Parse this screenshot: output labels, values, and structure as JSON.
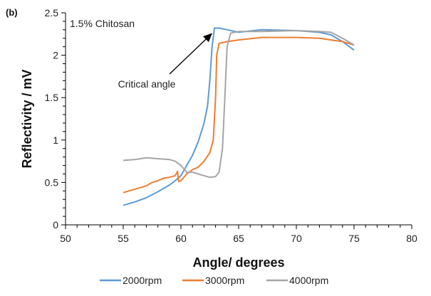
{
  "chart_data": {
    "type": "line",
    "panel_label": "(b)",
    "title": "1.5% Chitosan",
    "xlabel": "Angle/ degrees",
    "ylabel": "Reflectivity / mV",
    "xlim": [
      50,
      80
    ],
    "ylim": [
      0,
      2.5
    ],
    "xticks": [
      "50",
      "55",
      "60",
      "65",
      "70",
      "75",
      "80"
    ],
    "yticks": [
      "0",
      "0.5",
      "1",
      "1.5",
      "2",
      "2.5"
    ],
    "grid": false,
    "legend_position": "bottom",
    "annotation": {
      "text": "Critical angle",
      "points_to": [
        62.9,
        2.32
      ]
    },
    "series": [
      {
        "name": "2000rpm",
        "color": "#5B9BD5",
        "points": [
          [
            55,
            0.23
          ],
          [
            56,
            0.27
          ],
          [
            57,
            0.32
          ],
          [
            58,
            0.39
          ],
          [
            59,
            0.47
          ],
          [
            59.5,
            0.52
          ],
          [
            60,
            0.58
          ],
          [
            60.5,
            0.7
          ],
          [
            61,
            0.82
          ],
          [
            61.5,
            0.98
          ],
          [
            62,
            1.2
          ],
          [
            62.3,
            1.4
          ],
          [
            62.5,
            1.7
          ],
          [
            62.7,
            2.1
          ],
          [
            62.9,
            2.32
          ],
          [
            63.3,
            2.32
          ],
          [
            64,
            2.3
          ],
          [
            65,
            2.27
          ],
          [
            67,
            2.3
          ],
          [
            70,
            2.29
          ],
          [
            72,
            2.27
          ],
          [
            73,
            2.24
          ],
          [
            74,
            2.16
          ],
          [
            75,
            2.06
          ]
        ]
      },
      {
        "name": "3000rpm",
        "color": "#ED7D31",
        "points": [
          [
            55,
            0.38
          ],
          [
            56,
            0.42
          ],
          [
            57,
            0.46
          ],
          [
            57.5,
            0.5
          ],
          [
            58,
            0.52
          ],
          [
            58.5,
            0.55
          ],
          [
            59,
            0.56
          ],
          [
            59.5,
            0.58
          ],
          [
            59.7,
            0.63
          ],
          [
            59.8,
            0.51
          ],
          [
            60,
            0.52
          ],
          [
            60.5,
            0.6
          ],
          [
            61,
            0.65
          ],
          [
            61.5,
            0.68
          ],
          [
            62,
            0.75
          ],
          [
            62.5,
            0.85
          ],
          [
            62.8,
            1.0
          ],
          [
            63,
            1.5
          ],
          [
            63.1,
            2.0
          ],
          [
            63.3,
            2.14
          ],
          [
            64,
            2.16
          ],
          [
            65,
            2.18
          ],
          [
            67,
            2.21
          ],
          [
            70,
            2.21
          ],
          [
            72,
            2.2
          ],
          [
            74,
            2.16
          ],
          [
            75,
            2.12
          ]
        ]
      },
      {
        "name": "4000rpm",
        "color": "#A5A5A5",
        "points": [
          [
            55,
            0.76
          ],
          [
            56,
            0.77
          ],
          [
            57,
            0.79
          ],
          [
            58,
            0.78
          ],
          [
            59,
            0.77
          ],
          [
            59.5,
            0.75
          ],
          [
            60,
            0.7
          ],
          [
            60.5,
            0.62
          ],
          [
            61,
            0.62
          ],
          [
            61.5,
            0.6
          ],
          [
            62,
            0.58
          ],
          [
            62.5,
            0.56
          ],
          [
            63,
            0.57
          ],
          [
            63.3,
            0.62
          ],
          [
            63.6,
            0.9
          ],
          [
            63.8,
            1.5
          ],
          [
            64,
            2.1
          ],
          [
            64.3,
            2.26
          ],
          [
            65,
            2.28
          ],
          [
            67,
            2.28
          ],
          [
            70,
            2.29
          ],
          [
            72,
            2.28
          ],
          [
            73,
            2.27
          ],
          [
            74,
            2.2
          ],
          [
            75,
            2.12
          ]
        ]
      }
    ]
  }
}
